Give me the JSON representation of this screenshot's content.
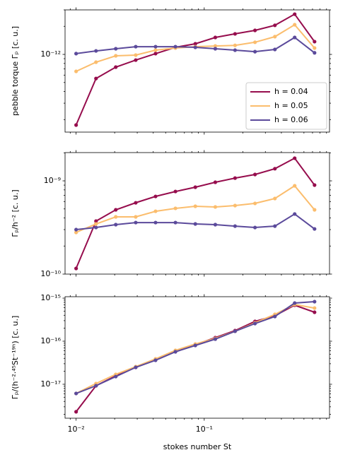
{
  "chart_data": [
    {
      "type": "line",
      "ylabel": "pebble torque Γₚ [c. u.]",
      "log_x": true,
      "log_y": true,
      "x": [
        0.01,
        0.0143,
        0.0204,
        0.0292,
        0.0417,
        0.0596,
        0.0852,
        0.122,
        0.174,
        0.249,
        0.356,
        0.508,
        0.726
      ],
      "xlim": [
        0.0082,
        0.95
      ],
      "xticks": [
        0.01,
        0.1
      ],
      "ylim": [
        1.47e-13,
        3e-12
      ],
      "yticks": [
        {
          "value": 1e-12,
          "label": "10⁻¹²"
        }
      ],
      "legend": "lower right",
      "series": [
        {
          "name": "h = 0.04",
          "color": "#960d4d",
          "values": [
            1.75e-13,
            5.52e-13,
            7.31e-13,
            8.69e-13,
            1.02e-12,
            1.19e-12,
            1.3e-12,
            1.52e-12,
            1.66e-12,
            1.81e-12,
            2.05e-12,
            2.7e-12,
            1.37e-12
          ]
        },
        {
          "name": "h = 0.05",
          "color": "#fbbd6d",
          "values": [
            6.58e-13,
            8.26e-13,
            9.66e-13,
            9.83e-13,
            1.11e-12,
            1.17e-12,
            1.21e-12,
            1.23e-12,
            1.25e-12,
            1.35e-12,
            1.55e-12,
            2.08e-12,
            1.17e-12
          ]
        },
        {
          "name": "h = 0.06",
          "color": "#5b4a9b",
          "values": [
            1.02e-12,
            1.09e-12,
            1.15e-12,
            1.21e-12,
            1.21e-12,
            1.21e-12,
            1.19e-12,
            1.15e-12,
            1.11e-12,
            1.07e-12,
            1.13e-12,
            1.52e-12,
            1.04e-12
          ]
        }
      ]
    },
    {
      "type": "line",
      "ylabel": "Γₚ/h⁻² [c. u.]",
      "log_x": true,
      "log_y": true,
      "x": [
        0.01,
        0.0143,
        0.0204,
        0.0292,
        0.0417,
        0.0596,
        0.0852,
        0.122,
        0.174,
        0.249,
        0.356,
        0.508,
        0.726
      ],
      "xlim": [
        0.0082,
        0.95
      ],
      "xticks": [
        0.01,
        0.1
      ],
      "ylim": [
        1e-10,
        2.01e-09
      ],
      "yticks": [
        {
          "value": 1e-10,
          "label": "10⁻¹⁰"
        },
        {
          "value": 1e-09,
          "label": "10⁻⁹"
        }
      ],
      "series": [
        {
          "color": "#960d4d",
          "values": [
            1.15e-10,
            3.7e-10,
            4.89e-10,
            5.82e-10,
            6.81e-10,
            7.69e-10,
            8.55e-10,
            9.66e-10,
            1.07e-09,
            1.17e-09,
            1.35e-09,
            1.75e-09,
            9.01e-10
          ]
        },
        {
          "color": "#fbbd6d",
          "values": [
            2.8e-10,
            3.45e-10,
            4.11e-10,
            4.11e-10,
            4.72e-10,
            5.07e-10,
            5.34e-10,
            5.25e-10,
            5.43e-10,
            5.73e-10,
            6.47e-10,
            8.85e-10,
            4.89e-10
          ]
        },
        {
          "color": "#5b4a9b",
          "values": [
            3e-10,
            3.16e-10,
            3.39e-10,
            3.57e-10,
            3.57e-10,
            3.57e-10,
            3.45e-10,
            3.39e-10,
            3.27e-10,
            3.16e-10,
            3.27e-10,
            4.41e-10,
            3.05e-10
          ]
        }
      ]
    },
    {
      "type": "line",
      "ylabel": "Γₚ/(h⁻²·⁴⁵St⁻¹⁹ʰ) [c. u.]",
      "xlabel": "stokes number St",
      "log_x": true,
      "log_y": true,
      "x": [
        0.01,
        0.0143,
        0.0204,
        0.0292,
        0.0417,
        0.0596,
        0.0852,
        0.122,
        0.174,
        0.249,
        0.356,
        0.508,
        0.726
      ],
      "xlim": [
        0.0082,
        0.95
      ],
      "xticks": [
        {
          "value": 0.01,
          "label": "10⁻²"
        },
        {
          "value": 0.1,
          "label": "10⁻¹"
        }
      ],
      "ylim": [
        1.63e-18,
        1.08e-15
      ],
      "yticks": [
        {
          "value": 1e-17,
          "label": "10⁻¹⁷"
        },
        {
          "value": 1e-16,
          "label": "10⁻¹⁶"
        },
        {
          "value": 1e-15,
          "label": "10⁻¹⁵"
        }
      ],
      "series": [
        {
          "color": "#960d4d",
          "values": [
            2.3e-18,
            9.27e-18,
            1.57e-17,
            2.47e-17,
            3.75e-17,
            5.89e-17,
            8.28e-17,
            1.21e-16,
            1.76e-16,
            2.88e-16,
            3.89e-16,
            6.86e-16,
            4.7e-16
          ]
        },
        {
          "color": "#fbbd6d",
          "values": [
            6.12e-18,
            1.04e-17,
            1.7e-17,
            2.57e-17,
            3.89e-17,
            6.12e-17,
            8.59e-17,
            1.16e-16,
            1.7e-16,
            2.67e-16,
            4.2e-16,
            7.12e-16,
            5.89e-16
          ]
        },
        {
          "color": "#5b4a9b",
          "values": [
            6.12e-18,
            9.27e-18,
            1.51e-17,
            2.47e-17,
            3.61e-17,
            5.68e-17,
            7.98e-17,
            1.12e-16,
            1.7e-16,
            2.57e-16,
            3.75e-16,
            7.68e-16,
            8.28e-16
          ]
        }
      ]
    }
  ]
}
